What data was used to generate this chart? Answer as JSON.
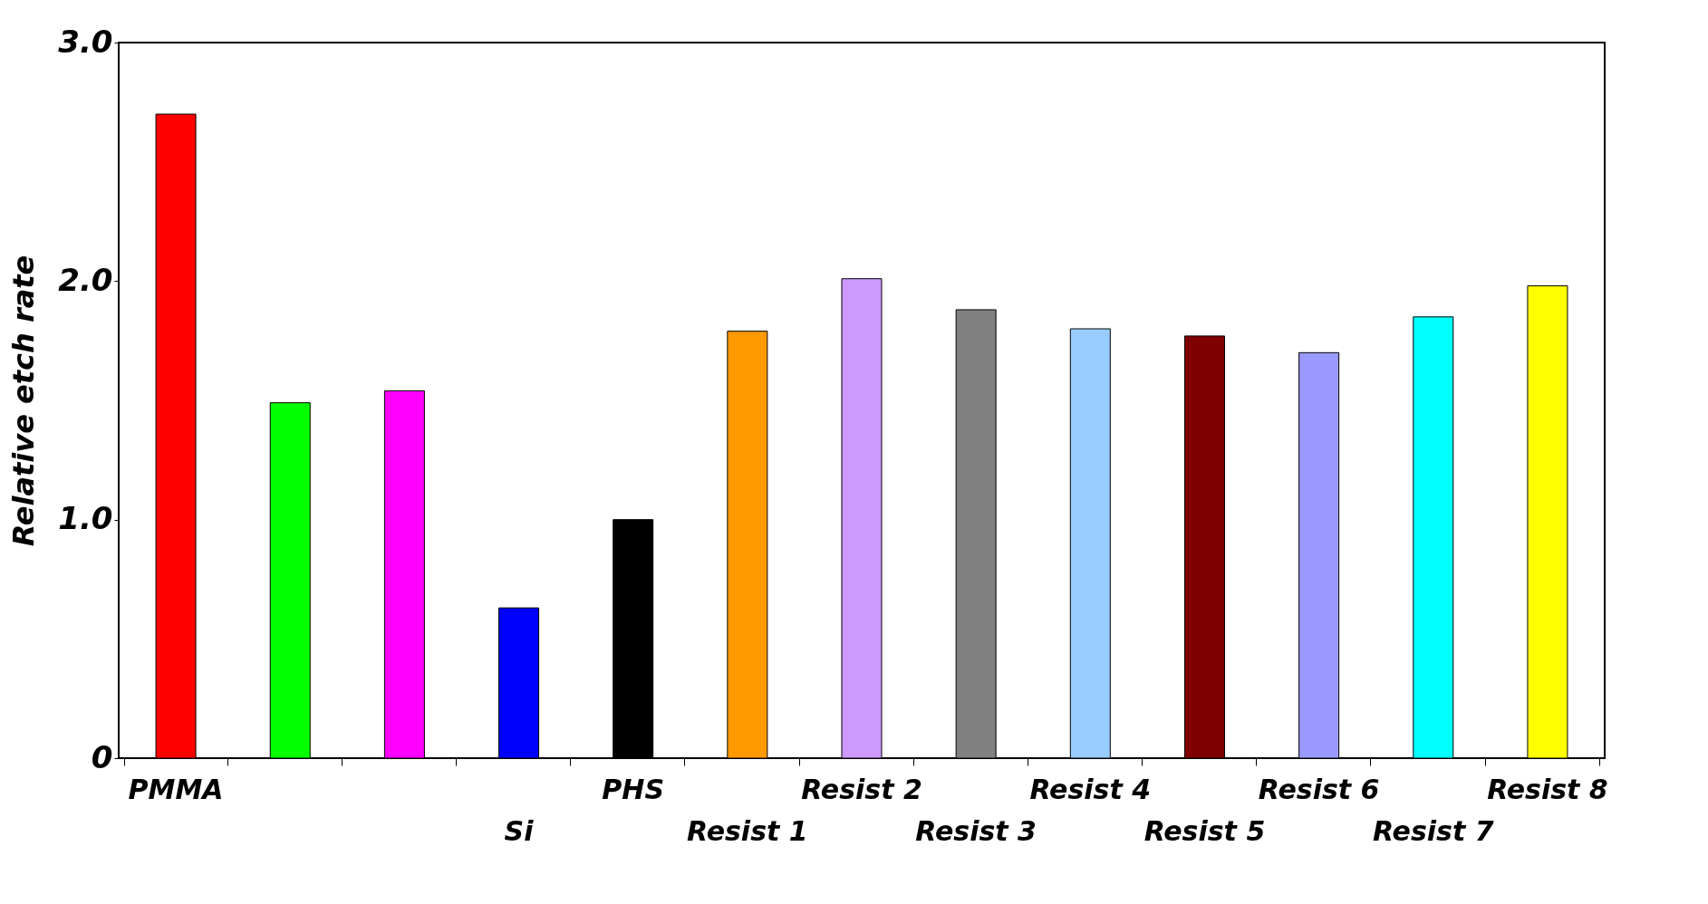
{
  "chart_data": {
    "type": "bar",
    "ylabel": "Relative etch rate",
    "categories": [
      "PMMA",
      null,
      null,
      "Si",
      "PHS",
      "Resist 1",
      "Resist 2",
      "Resist 3",
      "Resist 4",
      "Resist 5",
      "Resist 6",
      "Resist 7",
      "Resist 8"
    ],
    "values": [
      2.7,
      1.49,
      1.54,
      0.63,
      1.0,
      1.79,
      2.01,
      1.88,
      1.8,
      1.77,
      1.7,
      1.85,
      1.98
    ],
    "colors": [
      "#ff0000",
      "#00ff00",
      "#ff00ff",
      "#0000ff",
      "#000000",
      "#ff9900",
      "#cc99ff",
      "#808080",
      "#99ccff",
      "#800000",
      "#9999ff",
      "#00ffff",
      "#ffff00"
    ],
    "ylim": [
      0,
      3.0
    ],
    "yticks": [
      0,
      {
        "value": 1.0,
        "label": "1.0"
      },
      {
        "value": 2.0,
        "label": "2.0"
      },
      {
        "value": 3.0,
        "label": "3.0"
      }
    ],
    "grid": false
  }
}
